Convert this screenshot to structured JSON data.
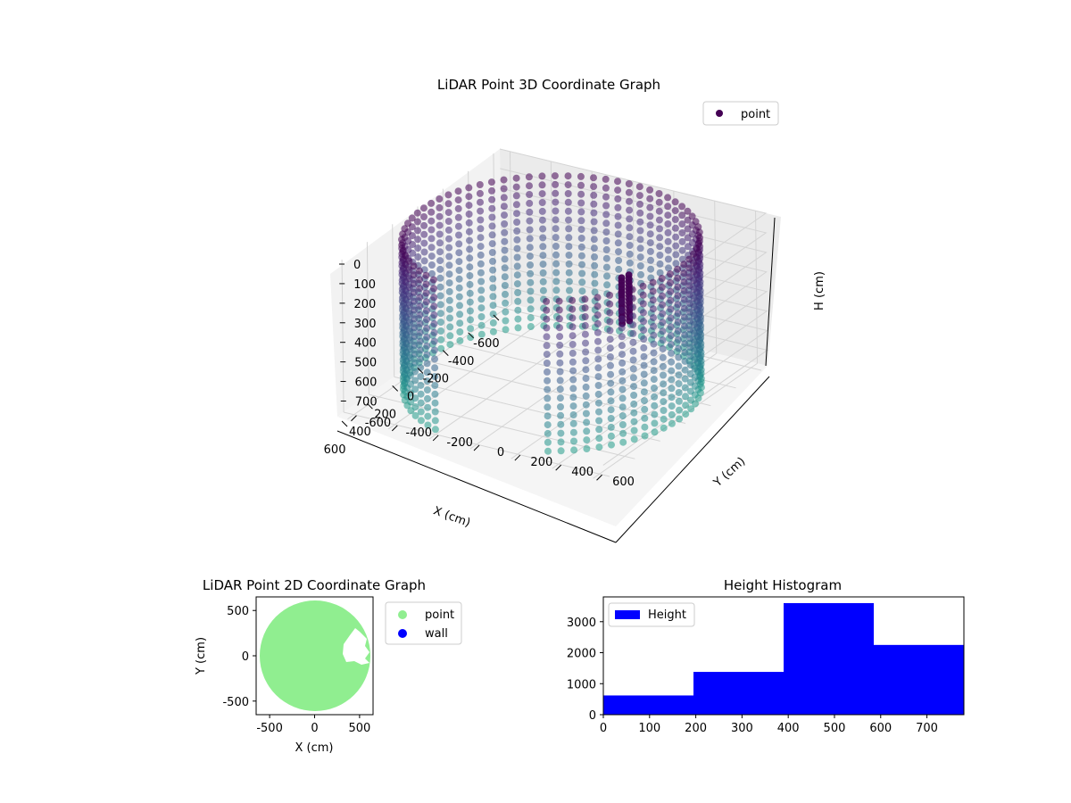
{
  "chart_data": [
    {
      "type": "scatter",
      "projection": "3d",
      "title": "LiDAR Point 3D Coordinate Graph",
      "xlabel": "X (cm)",
      "ylabel": "Y (cm)",
      "zlabel": "H (cm)",
      "xlim": [
        -650,
        650
      ],
      "ylim": [
        -650,
        650
      ],
      "zlim": [
        0,
        780
      ],
      "z_inverted": true,
      "xticks": [
        -600,
        -400,
        -200,
        0,
        200,
        400,
        600
      ],
      "yticks": [
        -600,
        -400,
        -200,
        0,
        200,
        400,
        600
      ],
      "zticks": [
        0,
        100,
        200,
        300,
        400,
        500,
        600,
        700
      ],
      "colormap": "viridis (by height)",
      "legend": {
        "placement": "upper-right",
        "entries": [
          {
            "label": "point",
            "color": "#440154"
          }
        ]
      },
      "grid": true,
      "series": [
        {
          "name": "point",
          "description": "cylindrical wall of points, radius ~620 cm, heights 0-780 cm, plus a cluster near (-50, 350)",
          "wall_radius": 620,
          "wall_height_range": [
            0,
            780
          ],
          "cluster": {
            "x": -50,
            "y": 350,
            "height_range": [
              120,
              360
            ]
          }
        }
      ]
    },
    {
      "type": "scatter",
      "title": "LiDAR Point 2D Coordinate Graph",
      "xlabel": "X (cm)",
      "ylabel": "Y (cm)",
      "xlim": [
        -650,
        650
      ],
      "ylim": [
        -650,
        650
      ],
      "xticks": [
        -500,
        0,
        500
      ],
      "yticks": [
        -500,
        0,
        500
      ],
      "legend": {
        "placement": "outside-right",
        "entries": [
          {
            "label": "point",
            "color": "#90ee90"
          },
          {
            "label": "wall",
            "color": "#0000ff"
          }
        ]
      },
      "series": [
        {
          "name": "point",
          "color": "#90ee90",
          "shape": "filled disc radius ~620 with notch near (350, 100)"
        },
        {
          "name": "wall",
          "color": "#0000ff",
          "points": []
        }
      ]
    },
    {
      "type": "bar",
      "title": "Height Histogram",
      "xlabel": "",
      "ylabel": "",
      "xlim": [
        0,
        780
      ],
      "ylim": [
        0,
        3800
      ],
      "xticks": [
        0,
        100,
        200,
        300,
        400,
        500,
        600,
        700
      ],
      "yticks": [
        0,
        1000,
        2000,
        3000
      ],
      "bin_edges": [
        0,
        195,
        390,
        585,
        780
      ],
      "values": [
        620,
        1380,
        3600,
        2250
      ],
      "color": "#0000ff",
      "legend": {
        "placement": "upper-left",
        "entries": [
          {
            "label": "Height",
            "color": "#0000ff"
          }
        ]
      }
    }
  ]
}
